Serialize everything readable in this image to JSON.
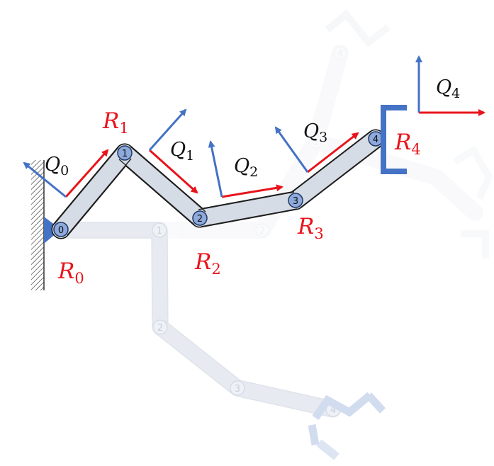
{
  "diagram": {
    "joints_current": [
      "0",
      "1",
      "2",
      "3",
      "4"
    ],
    "joints_ghost_lower": [
      "1",
      "2",
      "3",
      "4"
    ],
    "joints_ghost_upper": [
      "2",
      "3",
      "4"
    ],
    "labels": {
      "R0": {
        "base": "R",
        "sub": "0"
      },
      "R1": {
        "base": "R",
        "sub": "1"
      },
      "R2": {
        "base": "R",
        "sub": "2"
      },
      "R3": {
        "base": "R",
        "sub": "3"
      },
      "R4": {
        "base": "R",
        "sub": "4"
      },
      "Q0": {
        "base": "Q",
        "sub": "0"
      },
      "Q1": {
        "base": "Q",
        "sub": "1"
      },
      "Q2": {
        "base": "Q",
        "sub": "2"
      },
      "Q3": {
        "base": "Q",
        "sub": "3"
      },
      "Q4": {
        "base": "Q",
        "sub": "4"
      }
    },
    "colors": {
      "red_frame": "#e8141b",
      "blue_frame": "#4472c4",
      "link_fill": "#d6dce5",
      "joint_fill": "#8ea9db",
      "ghost": "#e3e8f1"
    }
  }
}
